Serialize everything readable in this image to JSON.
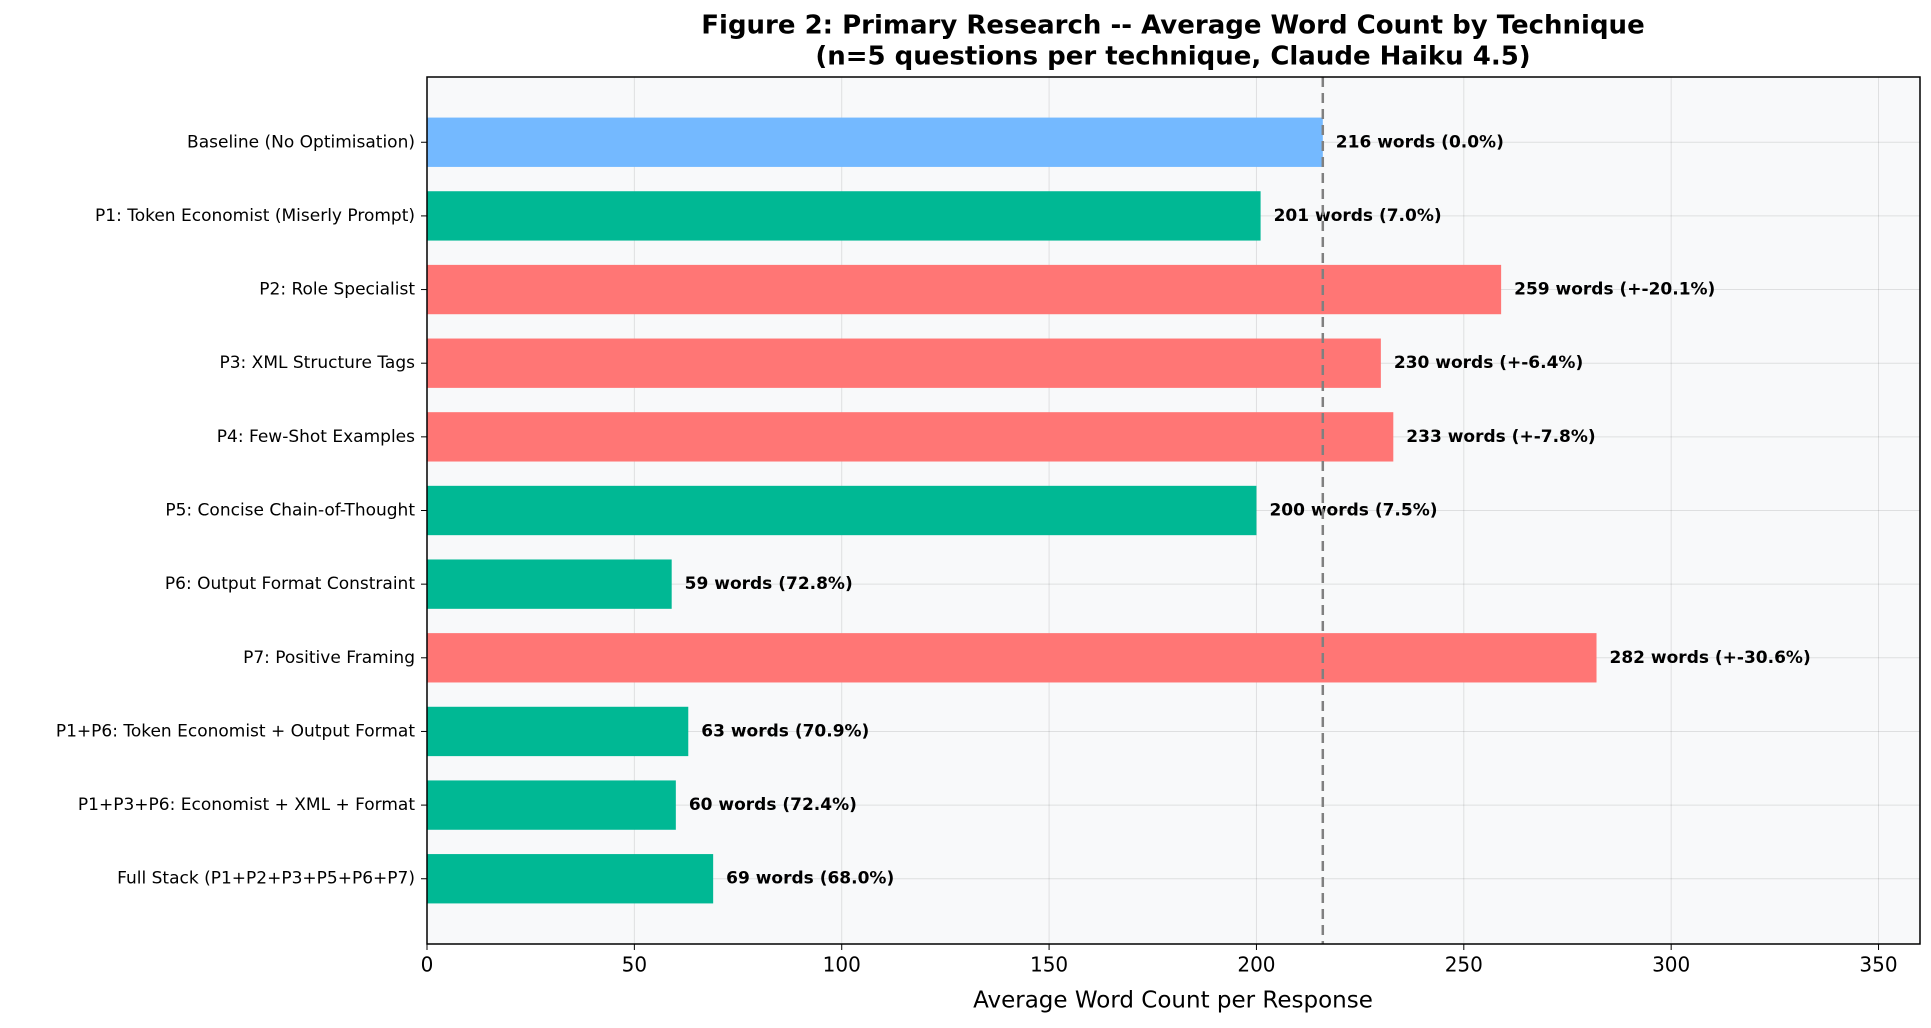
{
  "chart_data": {
    "type": "barh",
    "title": "Figure 2: Primary Research -- Average Word Count by Technique",
    "subtitle": "(n=5 questions per technique, Claude Haiku 4.5)",
    "xlabel": "Average Word Count per Response",
    "categories": [
      "Baseline (No Optimisation)",
      "P1: Token Economist (Miserly Prompt)",
      "P2: Role Specialist",
      "P3: XML Structure Tags",
      "P4: Few-Shot Examples",
      "P5: Concise Chain-of-Thought",
      "P6: Output Format Constraint",
      "P7: Positive Framing",
      "P1+P6: Token Economist + Output Format",
      "P1+P3+P6: Economist + XML + Format",
      "Full Stack (P1+P2+P3+P5+P6+P7)"
    ],
    "values": [
      216,
      201,
      259,
      230,
      233,
      200,
      59,
      282,
      63,
      60,
      69
    ],
    "value_labels": [
      "216 words (0.0%)",
      "201 words (7.0%)",
      "259 words (+-20.1%)",
      "230 words (+-6.4%)",
      "233 words (+-7.8%)",
      "200 words (7.5%)",
      "59 words (72.8%)",
      "282 words (+-30.6%)",
      "63 words (70.9%)",
      "60 words (72.4%)",
      "69 words (68.0%)"
    ],
    "colors": [
      "#74b9ff",
      "#00b894",
      "#ff7675",
      "#ff7675",
      "#ff7675",
      "#00b894",
      "#00b894",
      "#ff7675",
      "#00b894",
      "#00b894",
      "#00b894"
    ],
    "reference_line": {
      "value": 216,
      "color": "#808080",
      "style": "dashed"
    },
    "xlim": [
      0,
      360
    ],
    "xticks": [
      0,
      50,
      100,
      150,
      200,
      250,
      300,
      350
    ],
    "grid": true,
    "plot_background": "#f8f9fa"
  }
}
